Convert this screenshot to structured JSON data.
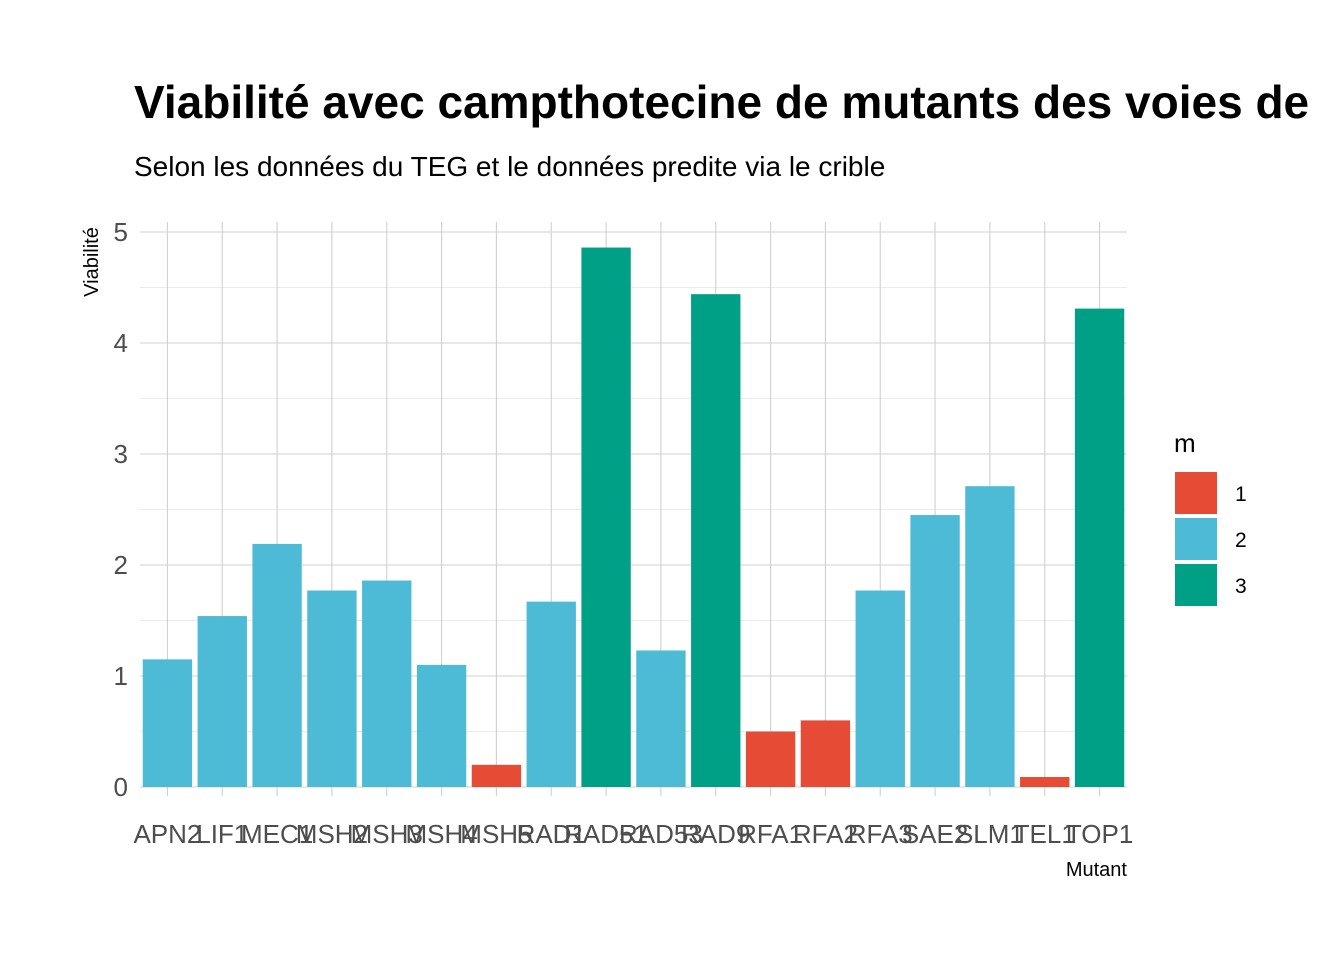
{
  "chart_data": {
    "type": "bar",
    "title": "Viabilité avec campthotecine de mutants des voies de",
    "subtitle": "Selon les données du TEG et le données predite via le crible",
    "xlabel": "Mutant",
    "ylabel": "Viabilité",
    "ylim": [
      0,
      5
    ],
    "yticks": [
      "0",
      "1",
      "2",
      "3",
      "4",
      "5"
    ],
    "grid": true,
    "legend_position": "right",
    "legend_title": "m",
    "legend": [
      {
        "label": "1",
        "color": "#E64B35"
      },
      {
        "label": "2",
        "color": "#4DBBD5"
      },
      {
        "label": "3",
        "color": "#00A087"
      }
    ],
    "categories": [
      "APN2",
      "LIF1",
      "MEC1",
      "MSH2",
      "MSH3",
      "MSH4",
      "MSH5",
      "RAD1",
      "RAD51",
      "RAD53",
      "RAD9",
      "RFA1",
      "RFA2",
      "RFA3",
      "SAE2",
      "SLM1",
      "TEL1",
      "TOP1"
    ],
    "values": [
      1.15,
      1.54,
      2.19,
      1.77,
      1.86,
      1.1,
      0.2,
      1.67,
      4.86,
      1.23,
      4.44,
      0.5,
      0.6,
      1.77,
      2.45,
      2.71,
      0.09,
      4.31
    ],
    "groups": [
      "2",
      "2",
      "2",
      "2",
      "2",
      "2",
      "1",
      "2",
      "3",
      "2",
      "3",
      "1",
      "1",
      "2",
      "2",
      "2",
      "1",
      "3"
    ]
  }
}
